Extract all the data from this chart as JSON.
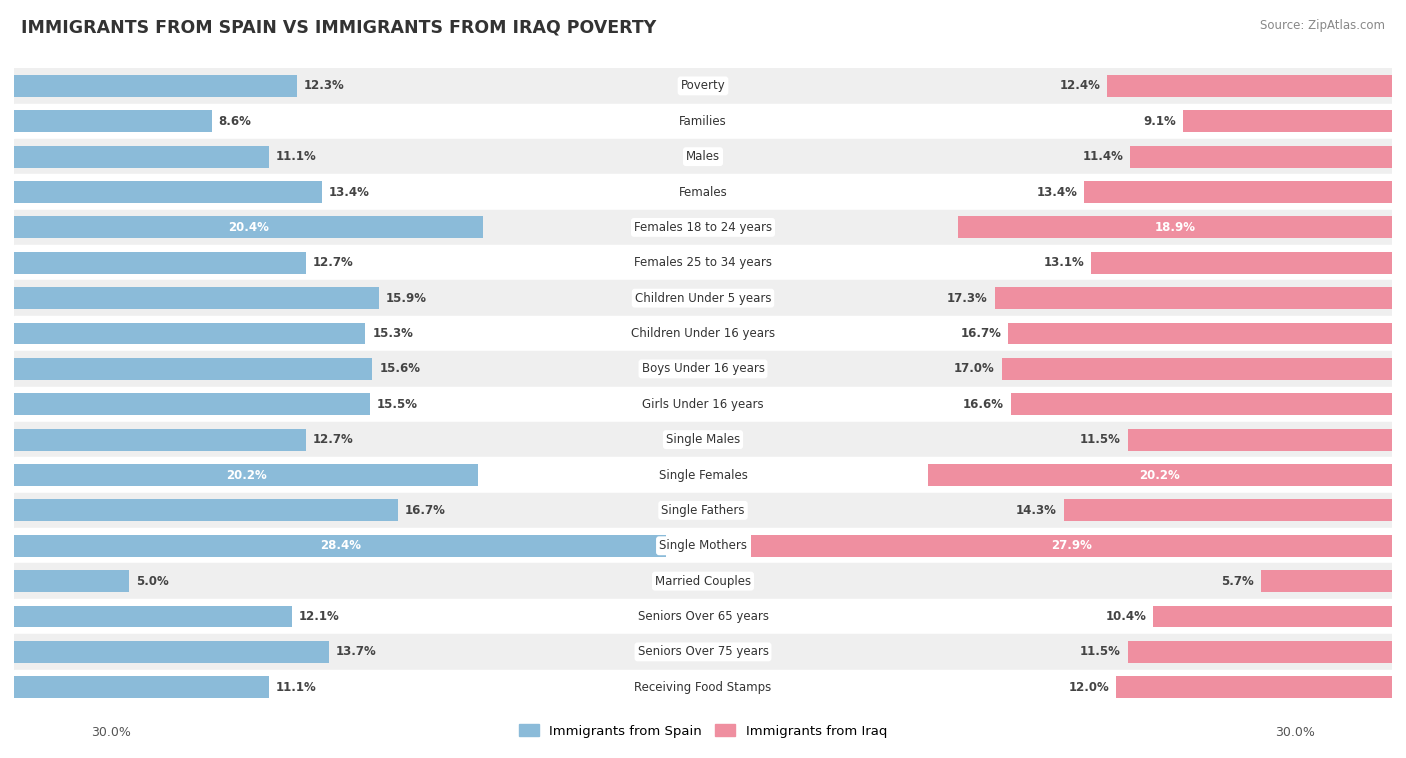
{
  "title": "IMMIGRANTS FROM SPAIN VS IMMIGRANTS FROM IRAQ POVERTY",
  "source": "Source: ZipAtlas.com",
  "categories": [
    "Poverty",
    "Families",
    "Males",
    "Females",
    "Females 18 to 24 years",
    "Females 25 to 34 years",
    "Children Under 5 years",
    "Children Under 16 years",
    "Boys Under 16 years",
    "Girls Under 16 years",
    "Single Males",
    "Single Females",
    "Single Fathers",
    "Single Mothers",
    "Married Couples",
    "Seniors Over 65 years",
    "Seniors Over 75 years",
    "Receiving Food Stamps"
  ],
  "spain_values": [
    12.3,
    8.6,
    11.1,
    13.4,
    20.4,
    12.7,
    15.9,
    15.3,
    15.6,
    15.5,
    12.7,
    20.2,
    16.7,
    28.4,
    5.0,
    12.1,
    13.7,
    11.1
  ],
  "iraq_values": [
    12.4,
    9.1,
    11.4,
    13.4,
    18.9,
    13.1,
    17.3,
    16.7,
    17.0,
    16.6,
    11.5,
    20.2,
    14.3,
    27.9,
    5.7,
    10.4,
    11.5,
    12.0
  ],
  "spain_color": "#8bbbd9",
  "iraq_color": "#ef8fa0",
  "background_row_odd": "#efefef",
  "background_row_even": "#ffffff",
  "max_value": 30.0,
  "axis_label": "30.0%",
  "legend_spain": "Immigrants from Spain",
  "legend_iraq": "Immigrants from Iraq",
  "white_threshold": 17.5
}
